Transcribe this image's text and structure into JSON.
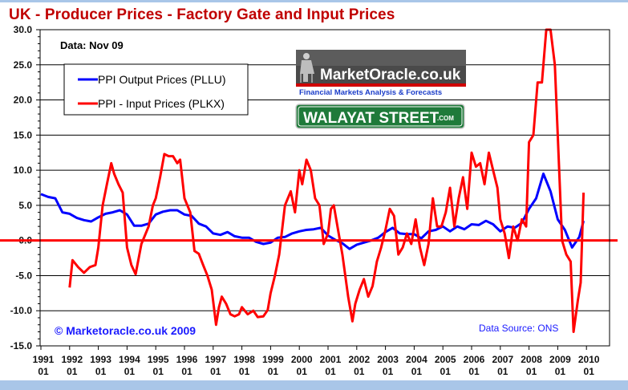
{
  "chart_data": {
    "type": "line",
    "title": "UK - Producer Prices - Factory Gate and Input Prices",
    "xlabel": "",
    "ylabel": "",
    "ylim": [
      -15,
      30
    ],
    "xlim": [
      1991,
      2011
    ],
    "yticks": [
      30,
      25,
      20,
      15,
      10,
      5,
      0,
      -5,
      -10,
      -15
    ],
    "ytick_labels": [
      "30.0",
      "25.0",
      "20.0",
      "15.0",
      "10.0",
      "5.0",
      "0.0",
      "-5.0",
      "-10.0",
      "-15.0"
    ],
    "xticks": [
      {
        "year": "1991",
        "month": "01"
      },
      {
        "year": "1992",
        "month": "01"
      },
      {
        "year": "1993",
        "month": "01"
      },
      {
        "year": "1994",
        "month": "01"
      },
      {
        "year": "1995",
        "month": "01"
      },
      {
        "year": "1996",
        "month": "01"
      },
      {
        "year": "1997",
        "month": "01"
      },
      {
        "year": "1998",
        "month": "01"
      },
      {
        "year": "1999",
        "month": "01"
      },
      {
        "year": "2000",
        "month": "01"
      },
      {
        "year": "2001",
        "month": "01"
      },
      {
        "year": "2002",
        "month": "01"
      },
      {
        "year": "2003",
        "month": "01"
      },
      {
        "year": "2004",
        "month": "01"
      },
      {
        "year": "2005",
        "month": "01"
      },
      {
        "year": "2006",
        "month": "01"
      },
      {
        "year": "2007",
        "month": "01"
      },
      {
        "year": "2008",
        "month": "01"
      },
      {
        "year": "2009",
        "month": "01"
      },
      {
        "year": "2010",
        "month": "01"
      }
    ],
    "grid": true,
    "legend_position": "top-left",
    "zero_line_color": "#ff0000",
    "series": [
      {
        "name": "PPI Output Prices (PLLU)",
        "color": "#0000ff",
        "x": [
          1991.0,
          1991.25,
          1991.5,
          1991.75,
          1992.0,
          1992.25,
          1992.5,
          1992.75,
          1993.0,
          1993.25,
          1993.5,
          1993.75,
          1994.0,
          1994.25,
          1994.5,
          1994.75,
          1995.0,
          1995.25,
          1995.5,
          1995.75,
          1996.0,
          1996.25,
          1996.5,
          1996.75,
          1997.0,
          1997.25,
          1997.5,
          1997.75,
          1998.0,
          1998.25,
          1998.5,
          1998.75,
          1999.0,
          1999.25,
          1999.5,
          1999.75,
          2000.0,
          2000.25,
          2000.5,
          2000.75,
          2001.0,
          2001.25,
          2001.5,
          2001.75,
          2002.0,
          2002.25,
          2002.5,
          2002.75,
          2003.0,
          2003.25,
          2003.5,
          2003.75,
          2004.0,
          2004.25,
          2004.5,
          2004.75,
          2005.0,
          2005.25,
          2005.5,
          2005.75,
          2006.0,
          2006.25,
          2006.5,
          2006.75,
          2007.0,
          2007.25,
          2007.5,
          2007.75,
          2008.0,
          2008.25,
          2008.5,
          2008.75,
          2009.0,
          2009.25,
          2009.5,
          2009.75,
          2009.9
        ],
        "values": [
          6.6,
          6.2,
          6.0,
          4.0,
          3.8,
          3.2,
          2.9,
          2.7,
          3.3,
          3.8,
          4.0,
          4.3,
          3.7,
          2.1,
          2.1,
          2.4,
          3.7,
          4.1,
          4.3,
          4.3,
          3.7,
          3.5,
          2.4,
          2.0,
          1.0,
          0.8,
          1.2,
          0.6,
          0.4,
          0.4,
          -0.2,
          -0.5,
          -0.3,
          0.4,
          0.5,
          1.0,
          1.3,
          1.5,
          1.6,
          1.8,
          0.7,
          0.1,
          -0.4,
          -1.2,
          -0.6,
          -0.3,
          0.0,
          0.4,
          1.2,
          1.8,
          1.0,
          0.9,
          0.9,
          0.3,
          1.3,
          1.5,
          2.0,
          1.3,
          2.0,
          1.6,
          2.3,
          2.2,
          2.8,
          2.3,
          1.3,
          2.0,
          1.8,
          2.5,
          4.5,
          6.0,
          9.5,
          7.0,
          3.0,
          1.5,
          -1.0,
          0.5,
          2.8
        ]
      },
      {
        "name": "PPI - Input Prices (PLKX)",
        "color": "#ff0000",
        "x": [
          1992.0,
          1992.1,
          1992.3,
          1992.5,
          1992.7,
          1992.9,
          1993.0,
          1993.15,
          1993.3,
          1993.45,
          1993.55,
          1993.7,
          1993.85,
          1994.0,
          1994.15,
          1994.3,
          1994.5,
          1994.75,
          1994.9,
          1995.0,
          1995.15,
          1995.3,
          1995.45,
          1995.6,
          1995.75,
          1995.85,
          1996.0,
          1996.2,
          1996.35,
          1996.5,
          1996.65,
          1996.8,
          1996.95,
          1997.1,
          1997.2,
          1997.3,
          1997.45,
          1997.6,
          1997.75,
          1997.9,
          1998.0,
          1998.2,
          1998.4,
          1998.55,
          1998.75,
          1998.9,
          1999.0,
          1999.15,
          1999.3,
          1999.5,
          1999.7,
          1999.85,
          2000.0,
          2000.1,
          2000.25,
          2000.4,
          2000.55,
          2000.7,
          2000.85,
          2001.0,
          2001.1,
          2001.2,
          2001.35,
          2001.5,
          2001.7,
          2001.85,
          2001.95,
          2002.1,
          2002.25,
          2002.4,
          2002.55,
          2002.7,
          2002.85,
          2003.0,
          2003.15,
          2003.3,
          2003.45,
          2003.6,
          2003.75,
          2003.9,
          2004.05,
          2004.2,
          2004.35,
          2004.5,
          2004.65,
          2004.8,
          2004.95,
          2005.1,
          2005.25,
          2005.4,
          2005.55,
          2005.7,
          2005.85,
          2006.0,
          2006.15,
          2006.3,
          2006.45,
          2006.6,
          2006.75,
          2006.9,
          2007.0,
          2007.15,
          2007.3,
          2007.45,
          2007.6,
          2007.75,
          2007.9,
          2008.0,
          2008.15,
          2008.3,
          2008.45,
          2008.6,
          2008.75,
          2008.9,
          2009.0,
          2009.15,
          2009.3,
          2009.45,
          2009.55,
          2009.7,
          2009.8,
          2009.9
        ],
        "values": [
          -6.7,
          -2.8,
          -3.8,
          -4.6,
          -3.8,
          -3.5,
          -1.0,
          5.0,
          8.0,
          11.0,
          9.5,
          8.0,
          6.8,
          -1.0,
          -3.5,
          -4.8,
          -0.5,
          2.0,
          5.0,
          6.0,
          9.0,
          12.3,
          12.0,
          12.0,
          11.0,
          11.5,
          6.0,
          4.0,
          -1.5,
          -1.9,
          -3.5,
          -5.0,
          -7.0,
          -12.0,
          -9.5,
          -8.0,
          -9.0,
          -10.5,
          -10.8,
          -10.5,
          -9.5,
          -10.5,
          -10.0,
          -10.9,
          -10.8,
          -9.9,
          -7.5,
          -5.0,
          -2.0,
          5.0,
          7.0,
          4.0,
          10.0,
          8.0,
          11.5,
          10.0,
          6.0,
          5.0,
          -0.5,
          1.0,
          4.5,
          5.0,
          1.5,
          -2.0,
          -8.0,
          -11.5,
          -9.0,
          -7.0,
          -5.5,
          -8.0,
          -6.5,
          -3.0,
          -1.0,
          1.5,
          4.5,
          3.5,
          -2.0,
          -1.0,
          1.0,
          -0.5,
          3.0,
          -1.0,
          -3.5,
          -0.5,
          6.0,
          2.0,
          2.0,
          4.0,
          7.5,
          2.0,
          6.0,
          9.0,
          4.5,
          12.5,
          10.5,
          11.0,
          8.0,
          12.5,
          10.0,
          7.5,
          3.0,
          1.0,
          -2.5,
          2.0,
          0.0,
          3.0,
          2.0,
          14.0,
          15.0,
          22.5,
          22.5,
          30.0,
          30.0,
          25.0,
          15.0,
          0.0,
          -2.0,
          -3.0,
          -13.0,
          -8.5,
          -6.0,
          6.8
        ]
      }
    ]
  },
  "annotations": {
    "data_note": "Data: Nov 09",
    "copyright": "© Marketoracle.co.uk  2009",
    "source": "Data Source: ONS"
  },
  "logos": {
    "market_oracle_name": "MarketOracle.co.uk",
    "market_oracle_tagline": "Financial Markets Analysis & Forecasts",
    "walayat_street": "WALAYAT STREET",
    "walayat_com": ".COM"
  },
  "colors": {
    "title": "#c00000",
    "output_series": "#0000ff",
    "input_series": "#ff0000",
    "annotation_blue": "#1a1aff",
    "sign_green": "#1f7a3a"
  }
}
